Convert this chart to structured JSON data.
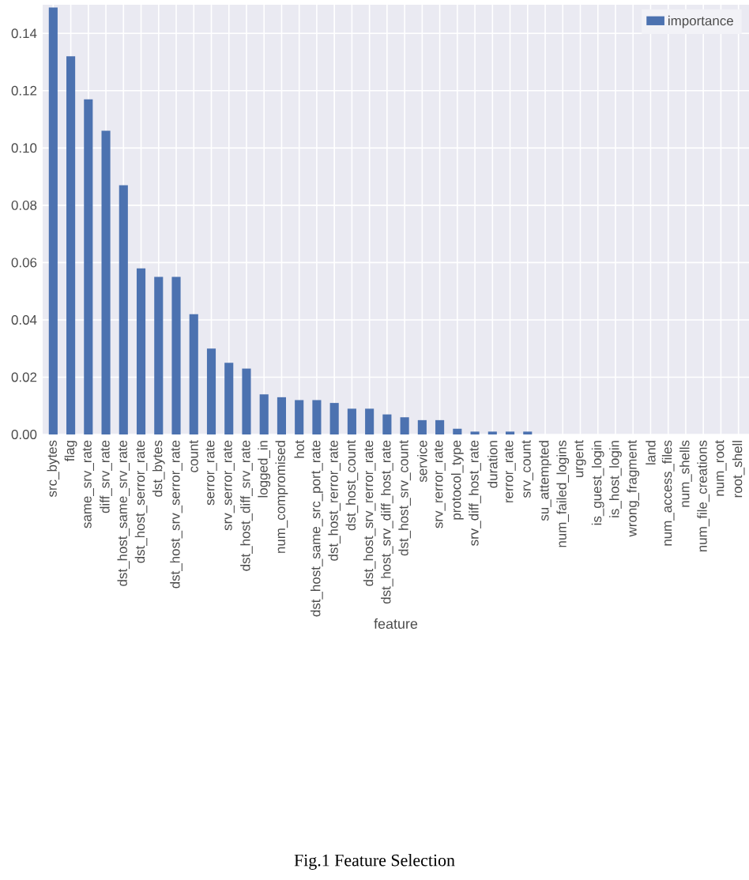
{
  "chart_data": {
    "type": "bar",
    "xlabel": "feature",
    "categories": [
      "src_bytes",
      "flag",
      "same_srv_rate",
      "diff_srv_rate",
      "dst_host_same_srv_rate",
      "dst_host_serror_rate",
      "dst_bytes",
      "dst_host_srv_serror_rate",
      "count",
      "serror_rate",
      "srv_serror_rate",
      "dst_host_diff_srv_rate",
      "logged_in",
      "num_compromised",
      "hot",
      "dst_host_same_src_port_rate",
      "dst_host_rerror_rate",
      "dst_host_count",
      "dst_host_srv_rerror_rate",
      "dst_host_srv_diff_host_rate",
      "dst_host_srv_count",
      "service",
      "srv_rerror_rate",
      "protocol_type",
      "srv_diff_host_rate",
      "duration",
      "rerror_rate",
      "srv_count",
      "su_attempted",
      "num_failed_logins",
      "urgent",
      "is_guest_login",
      "is_host_login",
      "wrong_fragment",
      "land",
      "num_access_files",
      "num_shells",
      "num_file_creations",
      "num_root",
      "root_shell"
    ],
    "series": [
      {
        "name": "importance",
        "color": "#4c72b0",
        "values": [
          0.149,
          0.132,
          0.117,
          0.106,
          0.087,
          0.058,
          0.055,
          0.055,
          0.042,
          0.03,
          0.025,
          0.023,
          0.014,
          0.013,
          0.012,
          0.012,
          0.011,
          0.009,
          0.009,
          0.007,
          0.006,
          0.005,
          0.005,
          0.002,
          0.001,
          0.001,
          0.001,
          0.001,
          0,
          0,
          0,
          0,
          0,
          0,
          0,
          0,
          0,
          0,
          0,
          0
        ]
      }
    ],
    "ylim": [
      0,
      0.15
    ],
    "yticks": [
      {
        "value": 0,
        "label": "0.00"
      },
      {
        "value": 0.02,
        "label": "0.02"
      },
      {
        "value": 0.04,
        "label": "0.04"
      },
      {
        "value": 0.06,
        "label": "0.06"
      },
      {
        "value": 0.08,
        "label": "0.08"
      },
      {
        "value": 0.1,
        "label": "0.10"
      },
      {
        "value": 0.12,
        "label": "0.12"
      },
      {
        "value": 0.14,
        "label": "0.14"
      }
    ],
    "grid": true,
    "legend": "top right",
    "annotations": [
      "Fig.1 Feature Selection"
    ]
  }
}
